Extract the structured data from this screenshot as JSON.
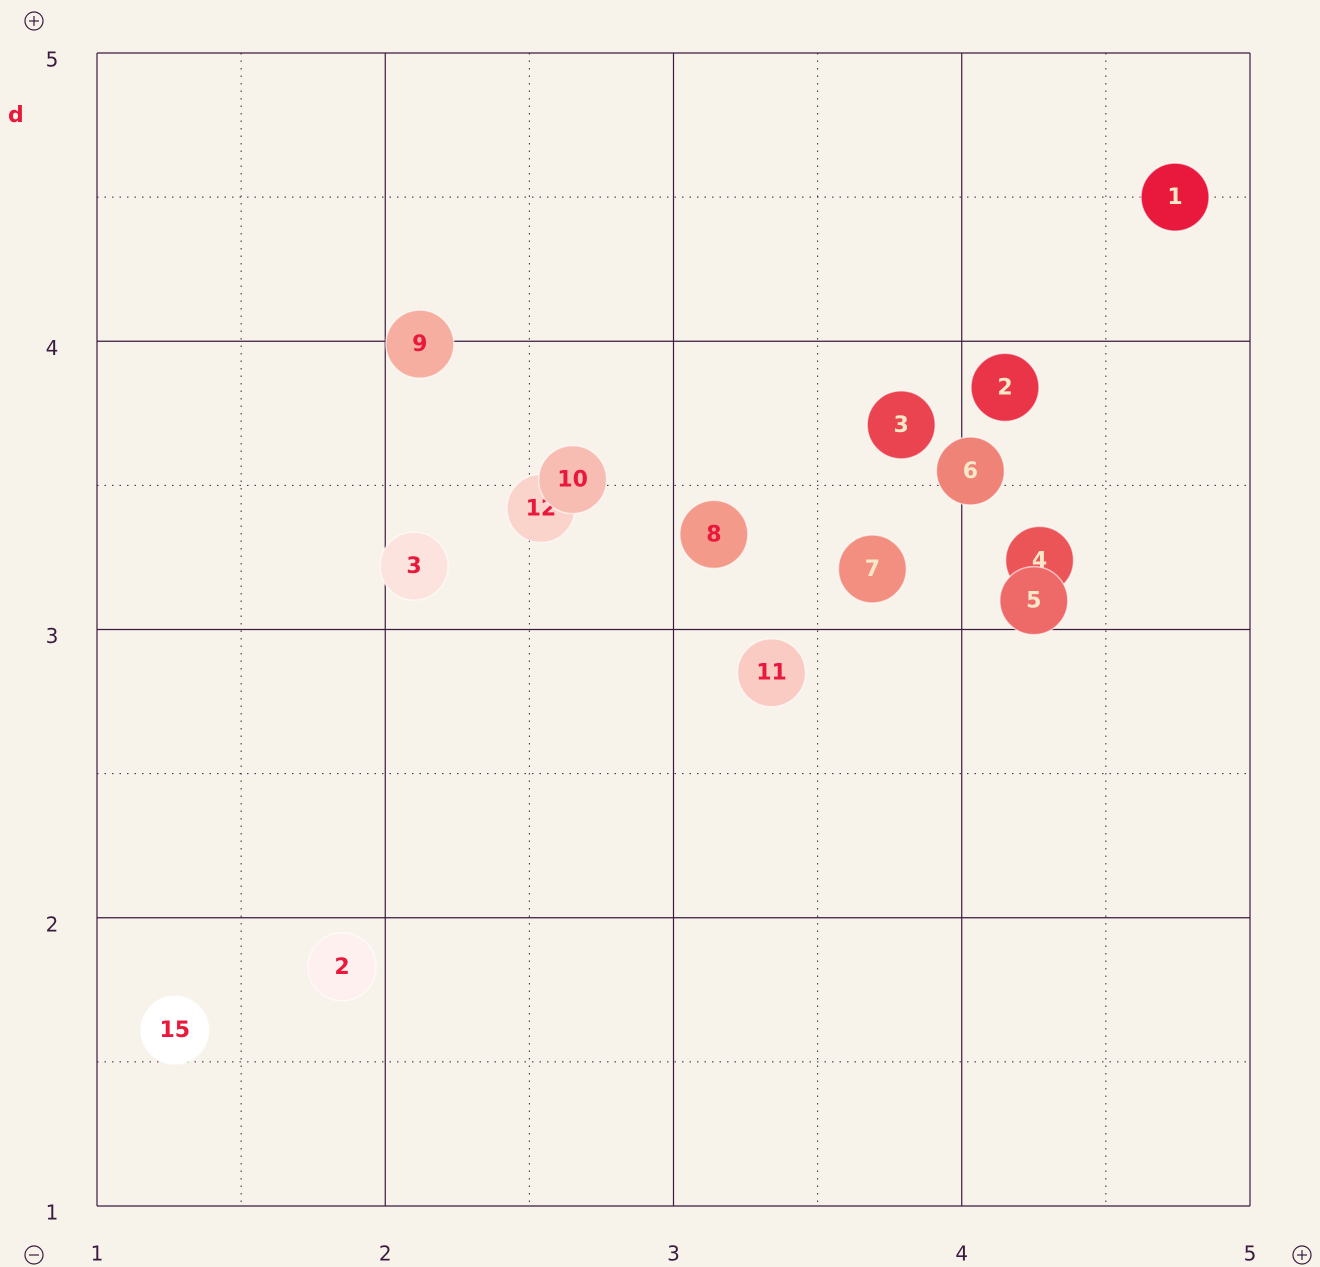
{
  "chart_data": {
    "type": "scatter",
    "y_label": "d",
    "labels": [
      "15",
      "2",
      "3",
      "12",
      "10",
      "9",
      "11",
      "8",
      "7",
      "6",
      "3",
      "2",
      "4",
      "5",
      "1"
    ],
    "x": [
      1.27,
      1.85,
      2.1,
      2.54,
      2.65,
      2.12,
      3.34,
      3.14,
      3.69,
      4.03,
      3.79,
      4.15,
      4.27,
      4.25,
      4.74
    ],
    "y": [
      1.61,
      1.83,
      3.22,
      3.42,
      3.52,
      3.99,
      2.85,
      3.33,
      3.21,
      3.55,
      3.71,
      3.84,
      3.24,
      3.1,
      4.5
    ],
    "colors": [
      "#ffffff",
      "#fdf0ee",
      "#fde3de",
      "#fad3cb",
      "#f7bdb2",
      "#f5ae9f",
      "#f9cbc2",
      "#f39a8a",
      "#f28f80",
      "#f08378",
      "#ea4450",
      "#ea3448",
      "#ec5558",
      "#ee6a68",
      "#e8193c"
    ],
    "label_colors": [
      "#e8193c",
      "#e8193c",
      "#e8193c",
      "#e8193c",
      "#e8193c",
      "#e8193c",
      "#e8193c",
      "#e8193c",
      "#f8e8c8",
      "#f8e8c8",
      "#f8e8c8",
      "#f8e8c8",
      "#f8e8c8",
      "#f8e8c8",
      "#f8e8c8"
    ],
    "xlim": [
      1,
      5
    ],
    "ylim": [
      1,
      5
    ],
    "xticks": [
      1,
      2,
      3,
      4,
      5
    ],
    "yticks": [
      1,
      2,
      3,
      4,
      5
    ],
    "minor_xticks": [
      1.5,
      2.5,
      3.5,
      4.5
    ],
    "minor_yticks": [
      1.5,
      2.5,
      3.5,
      4.5
    ],
    "grid": true
  }
}
